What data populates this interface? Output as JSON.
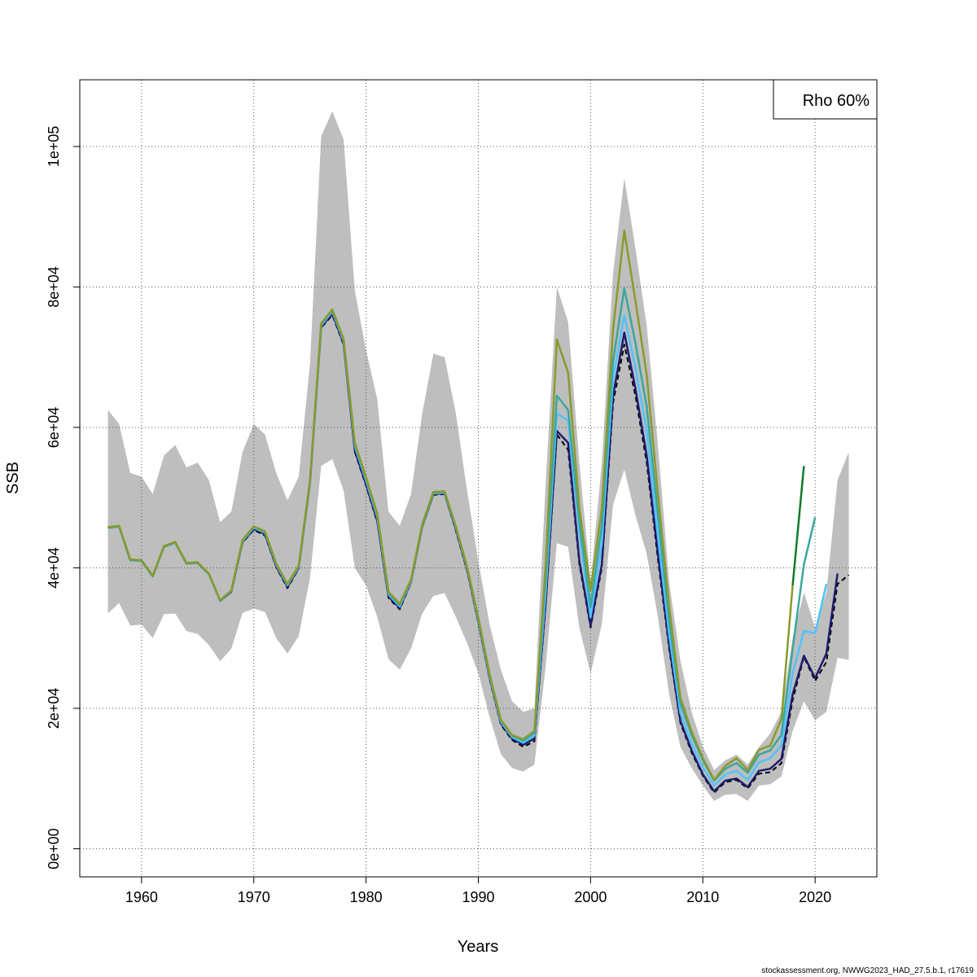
{
  "footer_text": "stockassessment.org, NWWG2023_HAD_27.5.b.1, r17619",
  "chart_data": {
    "type": "line",
    "xlabel": "Years",
    "ylabel": "SSB",
    "xlim": [
      1954.5,
      2025.5
    ],
    "ylim": [
      -4000,
      109500
    ],
    "xticks": [
      1960,
      1970,
      1980,
      1990,
      2000,
      2010,
      2020
    ],
    "xtick_labels": [
      "1960",
      "1970",
      "1980",
      "1990",
      "2000",
      "2010",
      "2020"
    ],
    "yticks": [
      0,
      20000,
      40000,
      60000,
      80000,
      100000
    ],
    "ytick_labels": [
      "0e+00",
      "2e+04",
      "4e+04",
      "6e+04",
      "8e+04",
      "1e+05"
    ],
    "grid": true,
    "legend": {
      "position": "top-right",
      "text": "Rho 60%"
    },
    "band_color": "#bebebe",
    "confidence_band": {
      "x": [
        1957,
        1958,
        1959,
        1960,
        1961,
        1962,
        1963,
        1964,
        1965,
        1966,
        1967,
        1968,
        1969,
        1970,
        1971,
        1972,
        1973,
        1974,
        1975,
        1976,
        1977,
        1978,
        1979,
        1980,
        1981,
        1982,
        1983,
        1984,
        1985,
        1986,
        1987,
        1988,
        1989,
        1990,
        1991,
        1992,
        1993,
        1994,
        1995,
        1996,
        1997,
        1998,
        1999,
        2000,
        2001,
        2002,
        2003,
        2004,
        2005,
        2006,
        2007,
        2008,
        2009,
        2010,
        2011,
        2012,
        2013,
        2014,
        2015,
        2016,
        2017,
        2018,
        2019,
        2020,
        2021,
        2022,
        2023
      ],
      "lower": [
        33500,
        35000,
        31800,
        31900,
        30000,
        33400,
        33500,
        31000,
        30600,
        29000,
        26700,
        28500,
        33600,
        34200,
        33700,
        30000,
        27800,
        30300,
        38500,
        54500,
        55500,
        51000,
        40000,
        37500,
        33000,
        27000,
        25500,
        28500,
        33500,
        36000,
        36400,
        33000,
        29300,
        25000,
        18800,
        13500,
        11500,
        11000,
        12000,
        26000,
        43500,
        43000,
        31500,
        25000,
        32000,
        49000,
        54000,
        47500,
        42000,
        33000,
        22000,
        14500,
        11500,
        9000,
        6800,
        7700,
        7800,
        6800,
        9000,
        9200,
        10300,
        16800,
        21000,
        18300,
        19500,
        27200,
        26900
      ],
      "upper": [
        62500,
        60500,
        53500,
        53000,
        50500,
        56000,
        57500,
        54300,
        55000,
        52500,
        46500,
        48000,
        56500,
        60500,
        59000,
        53500,
        49600,
        53000,
        69000,
        101500,
        105000,
        101000,
        79500,
        71000,
        64000,
        48000,
        46000,
        50500,
        62000,
        70500,
        70000,
        62000,
        51000,
        41000,
        32000,
        25500,
        21000,
        19500,
        20000,
        52000,
        80000,
        75000,
        55000,
        38000,
        55000,
        82000,
        95500,
        85500,
        74500,
        57500,
        38000,
        26800,
        19500,
        14500,
        11200,
        12600,
        13400,
        12000,
        14500,
        16400,
        19500,
        30000,
        36500,
        31500,
        36500,
        52500,
        56500
      ]
    },
    "series": [
      {
        "color": "#000000",
        "dashed": true,
        "x": [
          1957,
          1958,
          1959,
          1960,
          1961,
          1962,
          1963,
          1964,
          1965,
          1966,
          1967,
          1968,
          1969,
          1970,
          1971,
          1972,
          1973,
          1974,
          1975,
          1976,
          1977,
          1978,
          1979,
          1980,
          1981,
          1982,
          1983,
          1984,
          1985,
          1986,
          1987,
          1988,
          1989,
          1990,
          1991,
          1992,
          1993,
          1994,
          1995,
          1996,
          1997,
          1998,
          1999,
          2000,
          2001,
          2002,
          2003,
          2004,
          2005,
          2006,
          2007,
          2008,
          2009,
          2010,
          2011,
          2012,
          2013,
          2014,
          2015,
          2016,
          2017,
          2018,
          2019,
          2020,
          2021,
          2022,
          2023
        ],
        "values": [
          45700,
          45900,
          41100,
          41000,
          38800,
          43000,
          43600,
          40600,
          40700,
          39100,
          35300,
          36600,
          43600,
          45400,
          44600,
          40100,
          37100,
          39900,
          52000,
          74200,
          76000,
          71800,
          56500,
          51700,
          46500,
          35700,
          34100,
          37900,
          45800,
          50400,
          50500,
          45300,
          39600,
          32200,
          24200,
          17700,
          15500,
          14500,
          15300,
          34500,
          59000,
          56800,
          40500,
          31500,
          40000,
          63500,
          71800,
          64500,
          55000,
          41200,
          28500,
          17900,
          13700,
          10400,
          8000,
          9500,
          9800,
          8600,
          10700,
          10900,
          12200,
          21200,
          27300,
          23900,
          26600,
          37700,
          39000
        ]
      },
      {
        "color": "#1f1b6e",
        "x": [
          1957,
          1958,
          1959,
          1960,
          1961,
          1962,
          1963,
          1964,
          1965,
          1966,
          1967,
          1968,
          1969,
          1970,
          1971,
          1972,
          1973,
          1974,
          1975,
          1976,
          1977,
          1978,
          1979,
          1980,
          1981,
          1982,
          1983,
          1984,
          1985,
          1986,
          1987,
          1988,
          1989,
          1990,
          1991,
          1992,
          1993,
          1994,
          1995,
          1996,
          1997,
          1998,
          1999,
          2000,
          2001,
          2002,
          2003,
          2004,
          2005,
          2006,
          2007,
          2008,
          2009,
          2010,
          2011,
          2012,
          2013,
          2014,
          2015,
          2016,
          2017,
          2018,
          2019,
          2020,
          2021,
          2022
        ],
        "values": [
          45700,
          45900,
          41100,
          41000,
          38800,
          43000,
          43600,
          40600,
          40700,
          39100,
          35300,
          36600,
          43700,
          45500,
          44800,
          40200,
          37300,
          40000,
          52100,
          74300,
          76200,
          72000,
          56700,
          51900,
          46700,
          35900,
          34300,
          38000,
          45900,
          50500,
          50600,
          45500,
          39800,
          32400,
          24400,
          17900,
          15700,
          14800,
          15700,
          35000,
          59500,
          57800,
          41000,
          31800,
          40500,
          64500,
          73500,
          65500,
          56000,
          42000,
          29000,
          18200,
          14000,
          10600,
          8200,
          9700,
          10000,
          8800,
          11100,
          11400,
          12800,
          22000,
          27500,
          24300,
          27800,
          39200
        ]
      },
      {
        "color": "#4fc3ff",
        "x": [
          1957,
          1958,
          1959,
          1960,
          1961,
          1962,
          1963,
          1964,
          1965,
          1966,
          1967,
          1968,
          1969,
          1970,
          1971,
          1972,
          1973,
          1974,
          1975,
          1976,
          1977,
          1978,
          1979,
          1980,
          1981,
          1982,
          1983,
          1984,
          1985,
          1986,
          1987,
          1988,
          1989,
          1990,
          1991,
          1992,
          1993,
          1994,
          1995,
          1996,
          1997,
          1998,
          1999,
          2000,
          2001,
          2002,
          2003,
          2004,
          2005,
          2006,
          2007,
          2008,
          2009,
          2010,
          2011,
          2012,
          2013,
          2014,
          2015,
          2016,
          2017,
          2018,
          2019,
          2020,
          2021
        ],
        "values": [
          45700,
          45900,
          41100,
          41000,
          38800,
          43000,
          43600,
          40600,
          40700,
          39100,
          35300,
          36700,
          43800,
          45700,
          45000,
          40400,
          37500,
          40100,
          52200,
          74500,
          76500,
          72300,
          57300,
          52400,
          47200,
          36200,
          34500,
          38100,
          46000,
          50600,
          50700,
          45700,
          40000,
          32600,
          24600,
          18100,
          15900,
          15100,
          16100,
          36500,
          62000,
          61000,
          45000,
          33000,
          43500,
          67000,
          76000,
          68500,
          59500,
          44500,
          30500,
          19300,
          15000,
          11600,
          9000,
          10600,
          11100,
          9800,
          12300,
          12900,
          14700,
          25000,
          31000,
          30700,
          37700
        ]
      },
      {
        "color": "#3aa79a",
        "x": [
          1957,
          1958,
          1959,
          1960,
          1961,
          1962,
          1963,
          1964,
          1965,
          1966,
          1967,
          1968,
          1969,
          1970,
          1971,
          1972,
          1973,
          1974,
          1975,
          1976,
          1977,
          1978,
          1979,
          1980,
          1981,
          1982,
          1983,
          1984,
          1985,
          1986,
          1987,
          1988,
          1989,
          1990,
          1991,
          1992,
          1993,
          1994,
          1995,
          1996,
          1997,
          1998,
          1999,
          2000,
          2001,
          2002,
          2003,
          2004,
          2005,
          2006,
          2007,
          2008,
          2009,
          2010,
          2011,
          2012,
          2013,
          2014,
          2015,
          2016,
          2017,
          2018,
          2019,
          2020
        ],
        "values": [
          45700,
          45900,
          41100,
          41000,
          38800,
          43000,
          43600,
          40600,
          40700,
          39100,
          35300,
          36700,
          43900,
          45800,
          45100,
          40500,
          37600,
          40200,
          52300,
          74700,
          76700,
          72500,
          57600,
          52700,
          47500,
          36400,
          34700,
          38200,
          46100,
          50700,
          50800,
          45800,
          40100,
          32800,
          24800,
          18300,
          16100,
          15400,
          16500,
          38500,
          64500,
          62500,
          46500,
          34500,
          46000,
          69500,
          79800,
          72000,
          63000,
          47500,
          32500,
          20700,
          16200,
          12600,
          9700,
          11400,
          12200,
          10800,
          13400,
          14000,
          16200,
          28500,
          40500,
          47200
        ]
      },
      {
        "color": "#8a9a2b",
        "x": [
          1957,
          1958,
          1959,
          1960,
          1961,
          1962,
          1963,
          1964,
          1965,
          1966,
          1967,
          1968,
          1969,
          1970,
          1971,
          1972,
          1973,
          1974,
          1975,
          1976,
          1977,
          1978,
          1979,
          1980,
          1981,
          1982,
          1983,
          1984,
          1985,
          1986,
          1987,
          1988,
          1989,
          1990,
          1991,
          1992,
          1993,
          1994,
          1995,
          1996,
          1997,
          1998,
          1999,
          2000,
          2001,
          2002,
          2003,
          2004,
          2005,
          2006,
          2007,
          2008,
          2009,
          2010,
          2011,
          2012,
          2013,
          2014,
          2015,
          2016,
          2017,
          2018
        ],
        "values": [
          45800,
          46000,
          41200,
          41100,
          38900,
          43100,
          43700,
          40700,
          40800,
          39200,
          35400,
          36800,
          44000,
          45900,
          45200,
          40600,
          37700,
          40300,
          52400,
          74800,
          76800,
          72600,
          57800,
          52900,
          47700,
          36600,
          34900,
          38300,
          46200,
          50800,
          50900,
          45900,
          40200,
          32900,
          24900,
          18400,
          16200,
          15600,
          16800,
          40500,
          72500,
          67800,
          48500,
          36800,
          48500,
          74000,
          88000,
          78000,
          67500,
          50500,
          34500,
          21500,
          16700,
          12900,
          9800,
          11800,
          12900,
          11200,
          14100,
          14700,
          18500,
          37500
        ]
      },
      {
        "color": "#137a2a",
        "x": [
          2018,
          2019
        ],
        "values": [
          37500,
          54500
        ]
      }
    ]
  }
}
